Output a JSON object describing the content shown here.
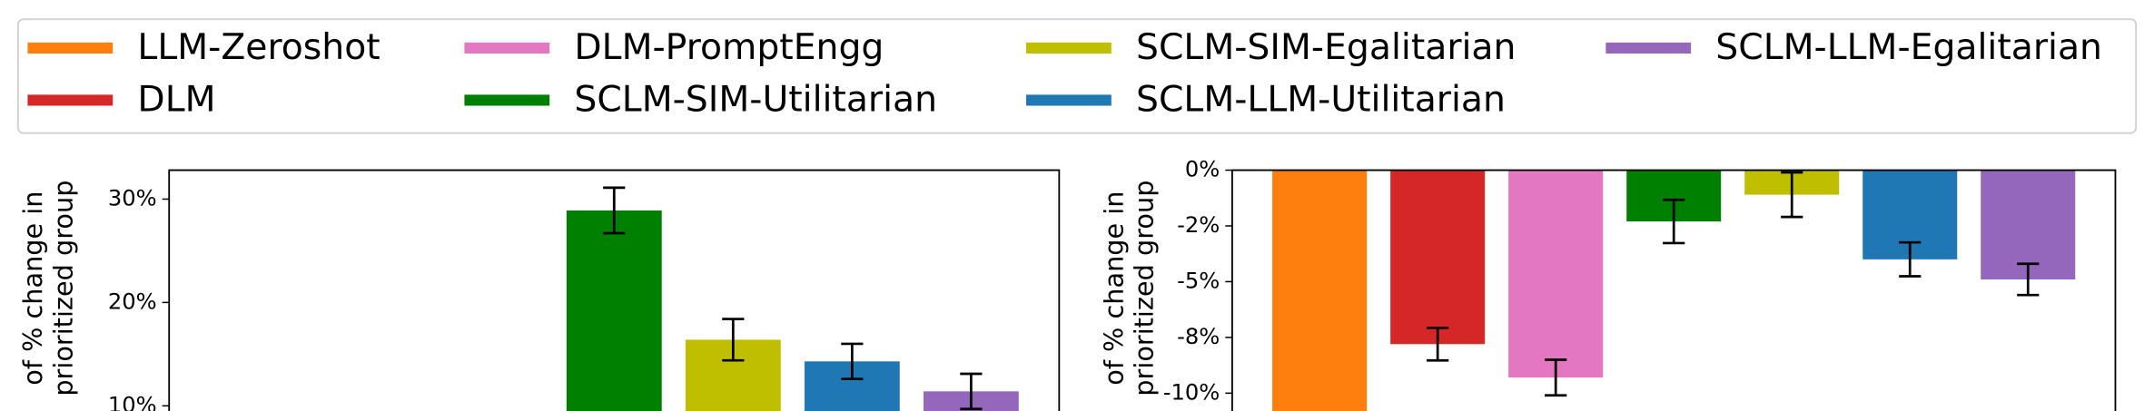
{
  "legend": {
    "entries": [
      {
        "name": "LLM-Zeroshot",
        "color": "#ff7f0e"
      },
      {
        "name": "DLM",
        "color": "#d62728"
      },
      {
        "name": "DLM-PromptEngg",
        "color": "#e377c2"
      },
      {
        "name": "SCLM-SIM-Utilitarian",
        "color": "#008000"
      },
      {
        "name": "SCLM-SIM-Egalitarian",
        "color": "#bfbf00"
      },
      {
        "name": "SCLM-LLM-Utilitarian",
        "color": "#1f77b4"
      },
      {
        "name": "SCLM-LLM-Egalitarian",
        "color": "#9467bd"
      }
    ]
  },
  "chart_data": [
    {
      "type": "bar",
      "ylabel": [
        "of % change in",
        "prioritized group"
      ],
      "values": [
        null,
        null,
        null,
        28.9,
        16.4,
        14.3,
        11.4
      ],
      "errors": [
        null,
        null,
        null,
        2.2,
        2.0,
        1.7,
        1.7
      ],
      "ylim": [
        9.5,
        32.8
      ],
      "yticks": [
        {
          "value": 10,
          "label": "10%"
        },
        {
          "value": 20,
          "label": "20%"
        },
        {
          "value": 30,
          "label": "30%"
        }
      ]
    },
    {
      "type": "bar",
      "ylabel": [
        "of % change in",
        "prioritized group"
      ],
      "values": [
        -11,
        -7.8,
        -9.3,
        -2.3,
        -1.1,
        -4.0,
        -4.9
      ],
      "errors": [
        null,
        0.73,
        0.8,
        0.97,
        1.0,
        0.76,
        0.7
      ],
      "ylim": [
        -10.8,
        0
      ],
      "yticks": [
        {
          "value": 0,
          "label": "0%"
        },
        {
          "value": -2.5,
          "label": "-2%"
        },
        {
          "value": -5,
          "label": "-5%"
        },
        {
          "value": -7.5,
          "label": "-8%"
        },
        {
          "value": -10,
          "label": "-10%"
        }
      ]
    }
  ]
}
